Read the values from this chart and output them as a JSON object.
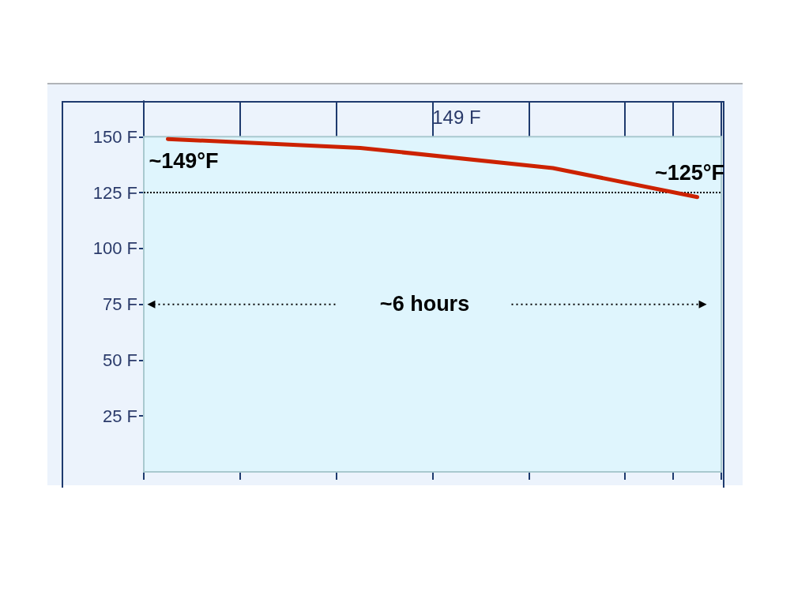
{
  "chart_data": {
    "type": "line",
    "categories": [
      null,
      null,
      null,
      null,
      null,
      null,
      null,
      null,
      null,
      null,
      null,
      null
    ],
    "series": [
      {
        "color": "#cc2200",
        "values": [
          149,
          null,
          null,
          null,
          145,
          null,
          null,
          null,
          136,
          null,
          null,
          123
        ]
      }
    ],
    "ylim": [
      0,
      166
    ],
    "yticks": [
      {
        "value": 25,
        "label": "25 F"
      },
      {
        "value": 50,
        "label": "50 F"
      },
      {
        "value": 75,
        "label": "75 F"
      },
      {
        "value": 100,
        "label": "100 F"
      },
      {
        "value": 125,
        "label": "125 F"
      },
      {
        "value": 150,
        "label": "150 F"
      }
    ],
    "tick_labels": "y",
    "grid": "x",
    "marker": "none",
    "line_style": "solid",
    "bands": [
      {
        "axis": "y",
        "from": 0,
        "to": 150,
        "color": "#dff5fd"
      }
    ],
    "ref_lines": [
      {
        "axis": "y",
        "value": 125,
        "label": "~125°F",
        "color": "#000000",
        "line_style": "dotted"
      }
    ],
    "annotations": [
      "149 F",
      {
        "text": "~149°F",
        "y": 149
      },
      "~6 hours"
    ]
  }
}
